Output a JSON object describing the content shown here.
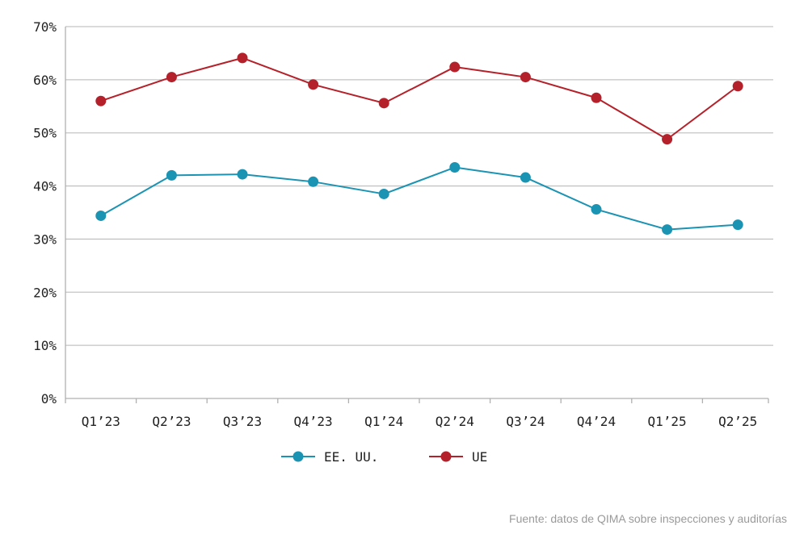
{
  "chart_data": {
    "type": "line",
    "title": "",
    "xlabel": "",
    "ylabel": "",
    "categories": [
      "Q1’23",
      "Q2’23",
      "Q3’23",
      "Q4’23",
      "Q1’24",
      "Q2’24",
      "Q3’24",
      "Q4’24",
      "Q1’25",
      "Q2’25"
    ],
    "y_ticks": [
      "0%",
      "10%",
      "20%",
      "30%",
      "40%",
      "50%",
      "60%",
      "70%"
    ],
    "ylim": [
      0,
      70
    ],
    "y_unit": "%",
    "grid": true,
    "legend_position": "bottom-center",
    "series": [
      {
        "name": "EE. UU.",
        "color": "#1b93b3",
        "values": [
          34.4,
          42.0,
          42.2,
          40.8,
          38.5,
          43.5,
          41.6,
          35.6,
          31.8,
          32.7
        ]
      },
      {
        "name": "UE",
        "color": "#b5212a",
        "values": [
          56.0,
          60.5,
          64.1,
          59.1,
          55.6,
          62.4,
          60.5,
          56.6,
          48.8,
          58.8
        ]
      }
    ]
  },
  "source": "Fuente: datos de QIMA sobre inspecciones y auditorías"
}
